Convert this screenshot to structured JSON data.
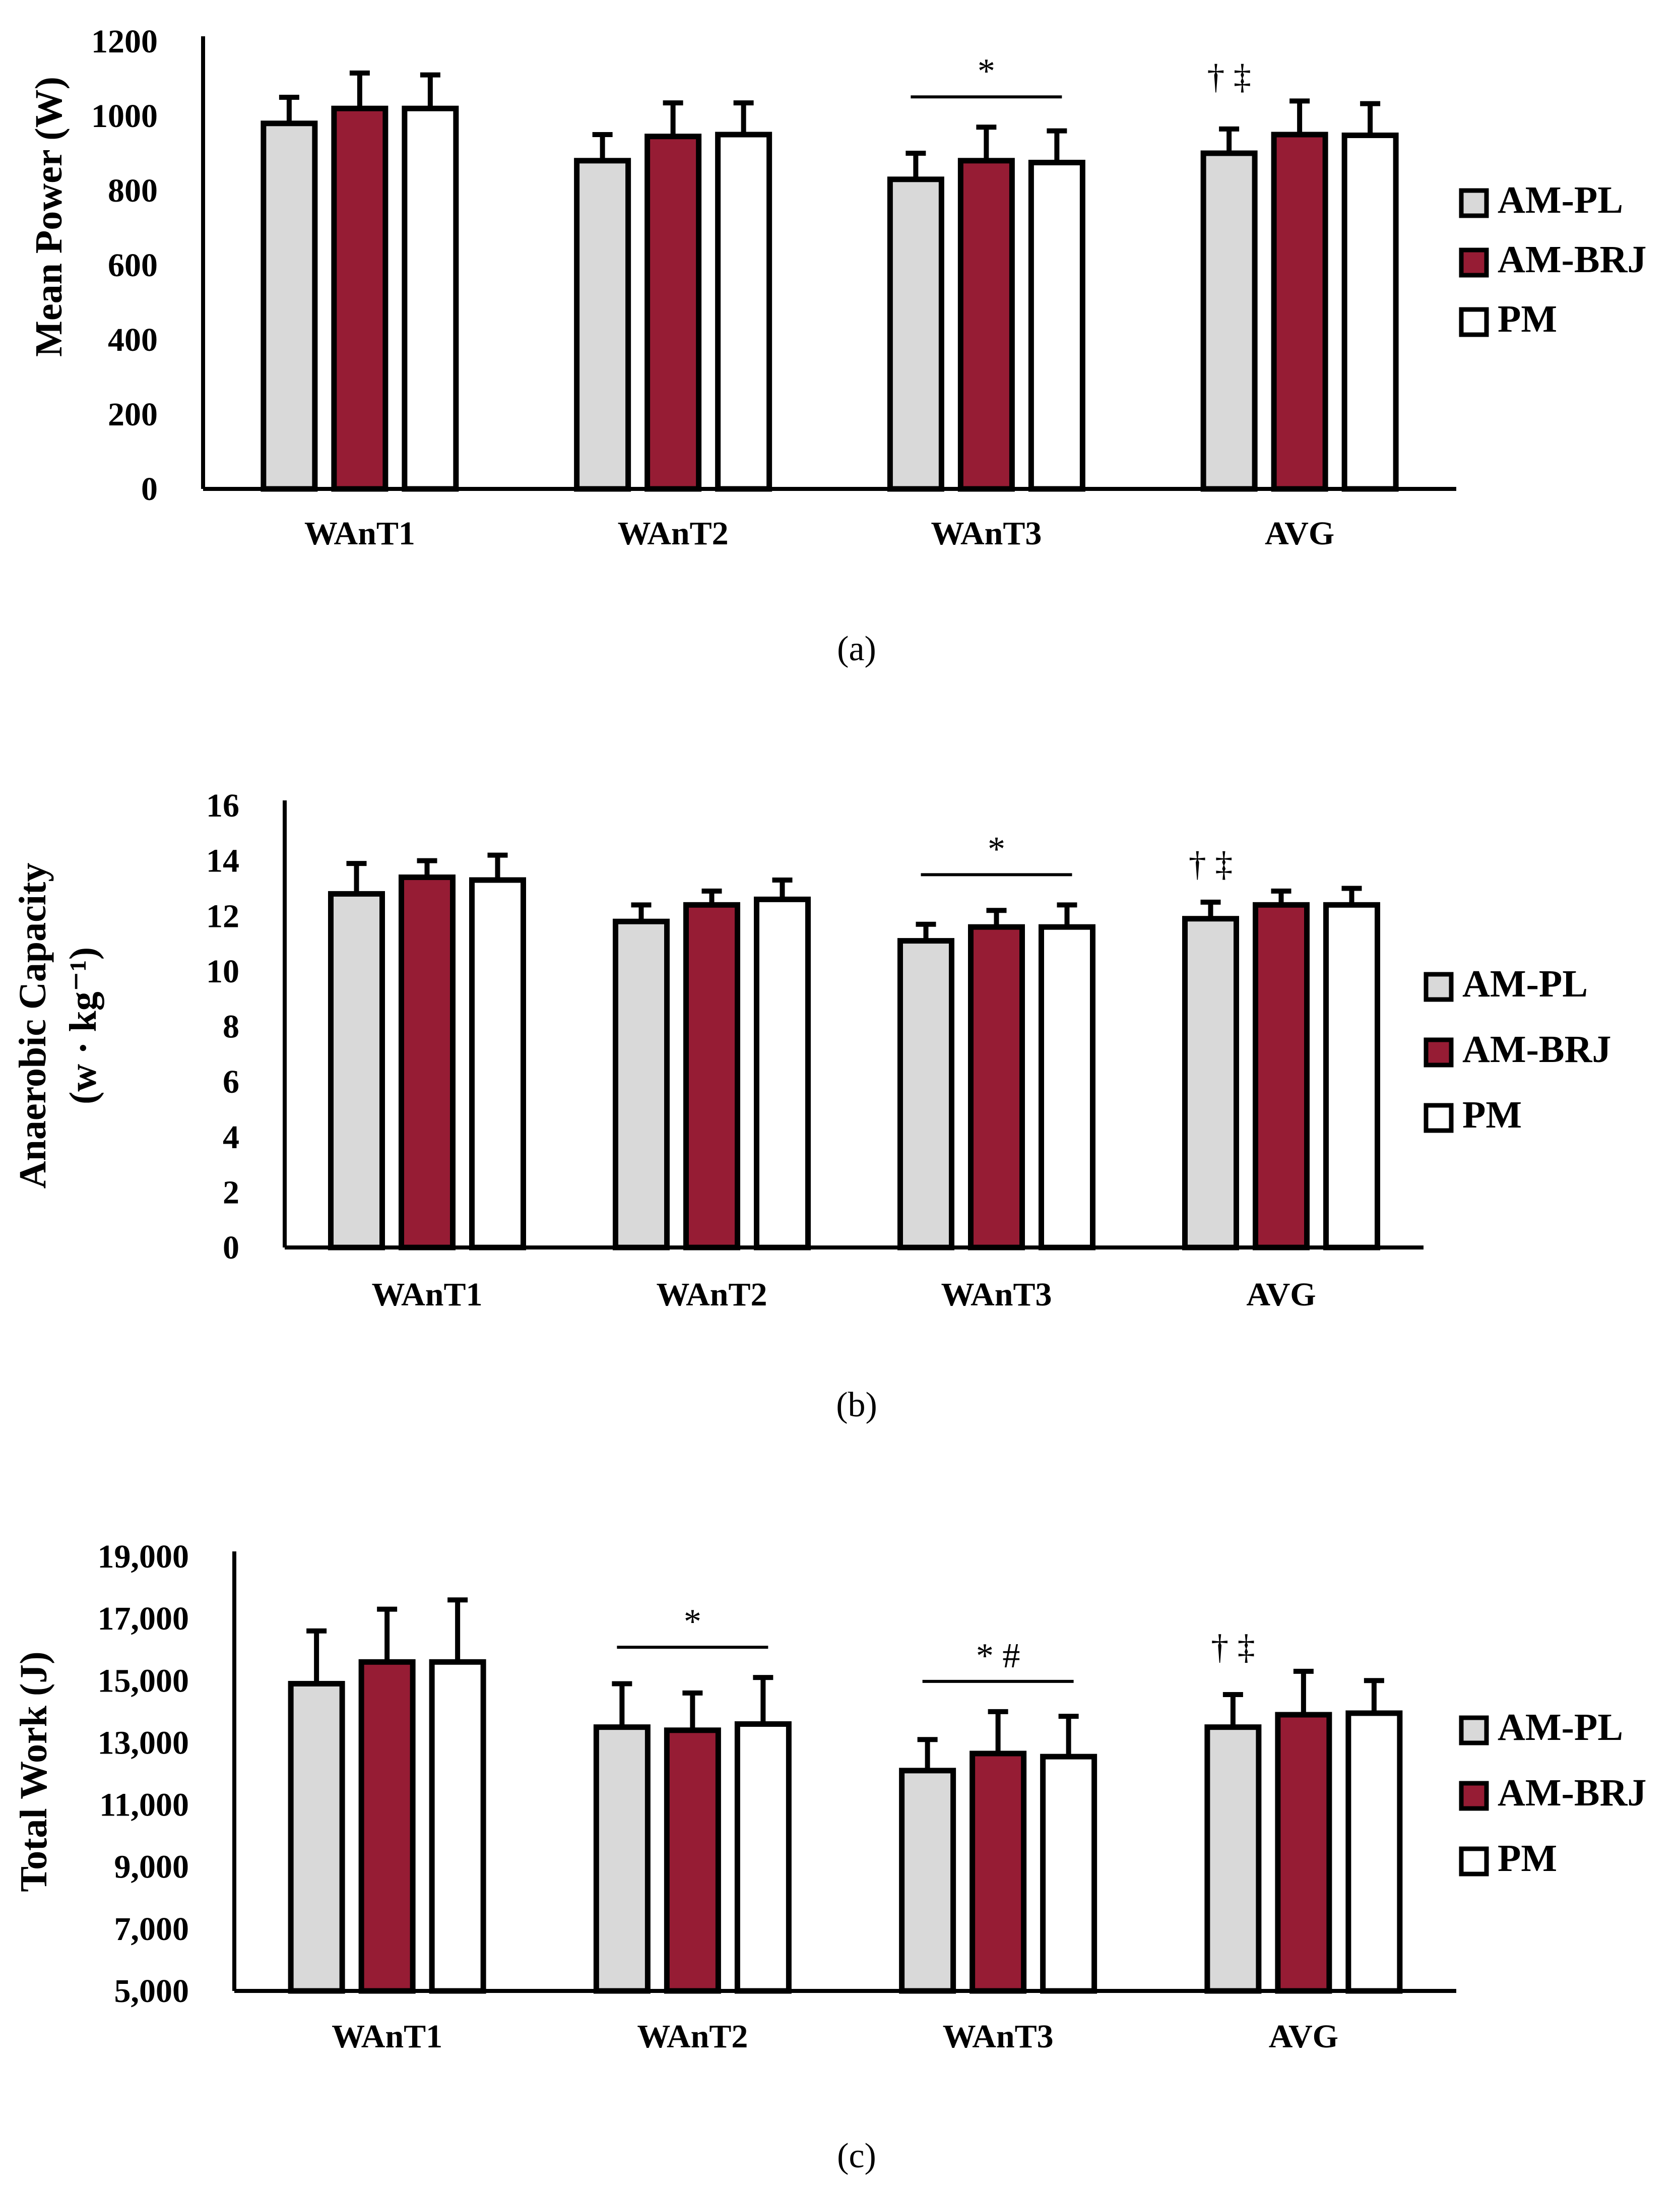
{
  "chart_data": [
    {
      "id": "a",
      "type": "bar",
      "caption": "(a)",
      "ylabel": "Mean Power (W)",
      "ylabel_lines": [
        "Mean Power (W)"
      ],
      "ylim": [
        0,
        1200
      ],
      "yticks": [
        0,
        200,
        400,
        600,
        800,
        1000,
        1200
      ],
      "ytick_labels": [
        "0",
        "200",
        "400",
        "600",
        "800",
        "1000",
        "1200"
      ],
      "categories": [
        "WAnT1",
        "WAnT2",
        "WAnT3",
        "AVG"
      ],
      "series": [
        {
          "name": "AM-PL",
          "color": "#d9d9d9",
          "values": [
            980,
            880,
            830,
            900
          ],
          "errors": [
            70,
            70,
            70,
            65
          ]
        },
        {
          "name": "AM-BRJ",
          "color": "#961c34",
          "values": [
            1020,
            945,
            880,
            950
          ],
          "errors": [
            95,
            90,
            90,
            90
          ]
        },
        {
          "name": "PM",
          "color": "#ffffff",
          "values": [
            1020,
            950,
            875,
            948
          ],
          "errors": [
            90,
            85,
            85,
            85
          ]
        }
      ],
      "annotations": [
        {
          "category": "WAnT3",
          "text": "*",
          "line": true
        },
        {
          "category": "AVG",
          "text": "† ‡",
          "line": false
        }
      ]
    },
    {
      "id": "b",
      "type": "bar",
      "caption": "(b)",
      "ylabel": "Anaerobic Capacity (w · kg⁻¹)",
      "ylabel_lines": [
        "Anaerobic Capacity",
        "(w · kg⁻¹)"
      ],
      "ylim": [
        0,
        16
      ],
      "yticks": [
        0,
        2,
        4,
        6,
        8,
        10,
        12,
        14,
        16
      ],
      "ytick_labels": [
        "0",
        "2",
        "4",
        "6",
        "8",
        "10",
        "12",
        "14",
        "16"
      ],
      "categories": [
        "WAnT1",
        "WAnT2",
        "WAnT3",
        "AVG"
      ],
      "series": [
        {
          "name": "AM-PL",
          "color": "#d9d9d9",
          "values": [
            12.8,
            11.8,
            11.1,
            11.9
          ],
          "errors": [
            1.1,
            0.6,
            0.6,
            0.6
          ]
        },
        {
          "name": "AM-BRJ",
          "color": "#961c34",
          "values": [
            13.4,
            12.4,
            11.6,
            12.4
          ],
          "errors": [
            0.6,
            0.5,
            0.6,
            0.5
          ]
        },
        {
          "name": "PM",
          "color": "#ffffff",
          "values": [
            13.3,
            12.6,
            11.6,
            12.4
          ],
          "errors": [
            0.9,
            0.7,
            0.8,
            0.6
          ]
        }
      ],
      "annotations": [
        {
          "category": "WAnT3",
          "text": "*",
          "line": true
        },
        {
          "category": "AVG",
          "text": "† ‡",
          "line": false
        }
      ]
    },
    {
      "id": "c",
      "type": "bar",
      "caption": "(c)",
      "ylabel": "Total Work (J)",
      "ylabel_lines": [
        "Total Work (J)"
      ],
      "ylim": [
        5000,
        19000
      ],
      "yticks": [
        5000,
        7000,
        9000,
        11000,
        13000,
        15000,
        17000,
        19000
      ],
      "ytick_labels": [
        "5,000",
        "7,000",
        "9,000",
        "11,000",
        "13,000",
        "15,000",
        "17,000",
        "19,000"
      ],
      "categories": [
        "WAnT1",
        "WAnT2",
        "WAnT3",
        "AVG"
      ],
      "series": [
        {
          "name": "AM-PL",
          "color": "#d9d9d9",
          "values": [
            14900,
            13500,
            12100,
            13500
          ],
          "errors": [
            1700,
            1400,
            1000,
            1050
          ]
        },
        {
          "name": "AM-BRJ",
          "color": "#961c34",
          "values": [
            15600,
            13400,
            12650,
            13900
          ],
          "errors": [
            1700,
            1200,
            1350,
            1400
          ]
        },
        {
          "name": "PM",
          "color": "#ffffff",
          "values": [
            15600,
            13600,
            12550,
            13950
          ],
          "errors": [
            2000,
            1500,
            1300,
            1050
          ]
        }
      ],
      "annotations": [
        {
          "category": "WAnT2",
          "text": "*",
          "line": true
        },
        {
          "category": "WAnT3",
          "text": "* #",
          "line": true
        },
        {
          "category": "AVG",
          "text": "† ‡",
          "line": false
        }
      ]
    }
  ]
}
